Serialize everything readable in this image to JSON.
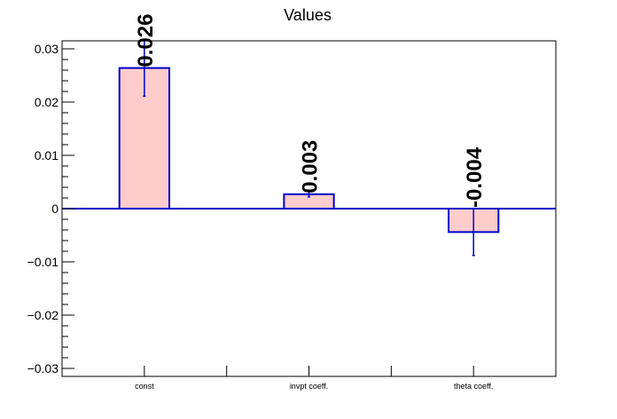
{
  "chart_data": {
    "type": "bar",
    "title": "Values",
    "xlabel": "",
    "ylabel": "",
    "categories": [
      "const",
      "invpt coeff.",
      "theta coeff."
    ],
    "values": [
      0.0264,
      0.0027,
      -0.0044
    ],
    "errors": [
      0.0053,
      0.0005,
      0.0044
    ],
    "data_labels": [
      "0.026",
      "0.003",
      "-0.004"
    ],
    "ylim": [
      -0.0315,
      0.0315
    ],
    "yticks": [
      {
        "value": 0.03,
        "label": "0.03"
      },
      {
        "value": 0.02,
        "label": "0.02"
      },
      {
        "value": 0.01,
        "label": "0.01"
      },
      {
        "value": 0,
        "label": "0"
      },
      {
        "value": -0.01,
        "label": "−0.01"
      },
      {
        "value": -0.02,
        "label": "−0.02"
      },
      {
        "value": -0.03,
        "label": "−0.03"
      }
    ],
    "bar_fill": "#ffcccc",
    "bar_edge": "#0000cc",
    "grid": false
  }
}
